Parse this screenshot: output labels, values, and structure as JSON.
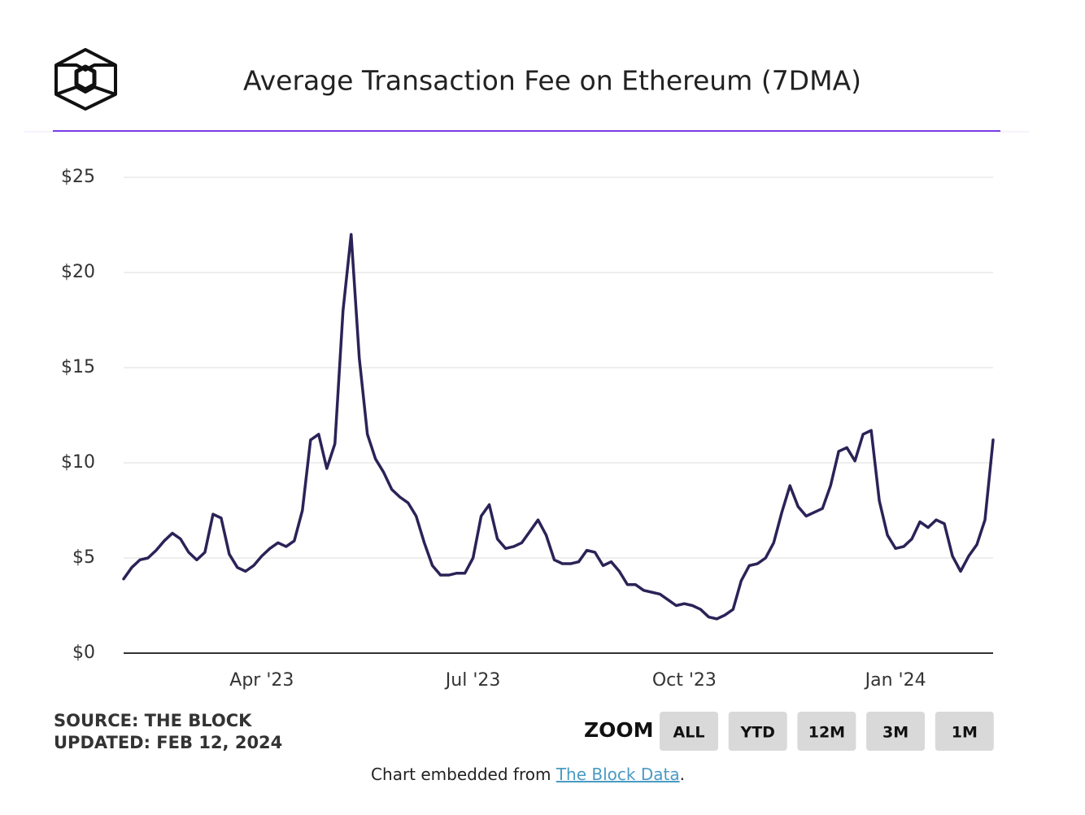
{
  "chart_data": {
    "type": "line",
    "title": "Average Transaction Fee on Ethereum (7DMA)",
    "source": "SOURCE: THE BLOCK",
    "updated": "UPDATED: FEB 12, 2024",
    "categories": [
      null,
      null,
      null,
      null,
      null,
      null,
      null,
      null,
      null,
      null,
      null,
      null,
      null,
      null,
      null,
      null,
      null,
      "Apr '23",
      null,
      null,
      null,
      null,
      null,
      null,
      null,
      null,
      null,
      null,
      null,
      null,
      null,
      null,
      null,
      null,
      null,
      null,
      null,
      null,
      null,
      null,
      null,
      null,
      null,
      "Jul '23",
      null,
      null,
      null,
      null,
      null,
      null,
      null,
      null,
      null,
      null,
      null,
      null,
      null,
      null,
      null,
      null,
      null,
      null,
      null,
      null,
      null,
      null,
      null,
      null,
      null,
      "Oct '23",
      null,
      null,
      null,
      null,
      null,
      null,
      null,
      null,
      null,
      null,
      null,
      null,
      null,
      null,
      null,
      null,
      null,
      null,
      null,
      null,
      null,
      null,
      null,
      null,
      null,
      "Jan '24",
      null,
      null,
      null,
      null,
      null,
      null,
      null,
      null,
      null,
      null,
      null,
      null
    ],
    "values": [
      3.9,
      4.5,
      4.9,
      5.0,
      5.4,
      5.9,
      6.3,
      6.0,
      5.3,
      4.9,
      5.3,
      7.3,
      7.1,
      5.2,
      4.5,
      4.3,
      4.6,
      5.1,
      5.5,
      5.8,
      5.6,
      5.9,
      7.5,
      11.2,
      11.5,
      9.7,
      11.0,
      18.0,
      22.0,
      15.5,
      11.5,
      10.2,
      9.5,
      8.6,
      8.2,
      7.9,
      7.2,
      5.8,
      4.6,
      4.1,
      4.1,
      4.2,
      4.2,
      5.0,
      7.2,
      7.8,
      6.0,
      5.5,
      5.6,
      5.8,
      6.4,
      7.0,
      6.2,
      4.9,
      4.7,
      4.7,
      4.8,
      5.4,
      5.3,
      4.6,
      4.8,
      4.3,
      3.6,
      3.6,
      3.3,
      3.2,
      3.1,
      2.8,
      2.5,
      2.6,
      2.5,
      2.3,
      1.9,
      1.8,
      2.0,
      2.3,
      3.8,
      4.6,
      4.7,
      5.0,
      5.8,
      7.4,
      8.8,
      7.7,
      7.2,
      7.4,
      7.6,
      8.8,
      10.6,
      10.8,
      10.1,
      11.5,
      11.7,
      8.0,
      6.2,
      5.5,
      5.6,
      6.0,
      6.9,
      6.6,
      7.0,
      6.8,
      5.1,
      4.3,
      5.1,
      5.7,
      7.0,
      11.2
    ],
    "color": "#2a2357",
    "ylim": [
      0,
      25
    ],
    "yticks": [
      {
        "value": 0,
        "label": "$0"
      },
      {
        "value": 5,
        "label": "$5"
      },
      {
        "value": 10,
        "label": "$10"
      },
      {
        "value": 15,
        "label": "$15"
      },
      {
        "value": 20,
        "label": "$20"
      },
      {
        "value": 25,
        "label": "$25"
      }
    ],
    "grid": true
  },
  "zoom": {
    "label": "ZOOM",
    "buttons": [
      "ALL",
      "YTD",
      "12M",
      "3M",
      "1M"
    ]
  },
  "footer": {
    "text": "Chart embedded from ",
    "link": "The Block Data",
    "end": "."
  }
}
